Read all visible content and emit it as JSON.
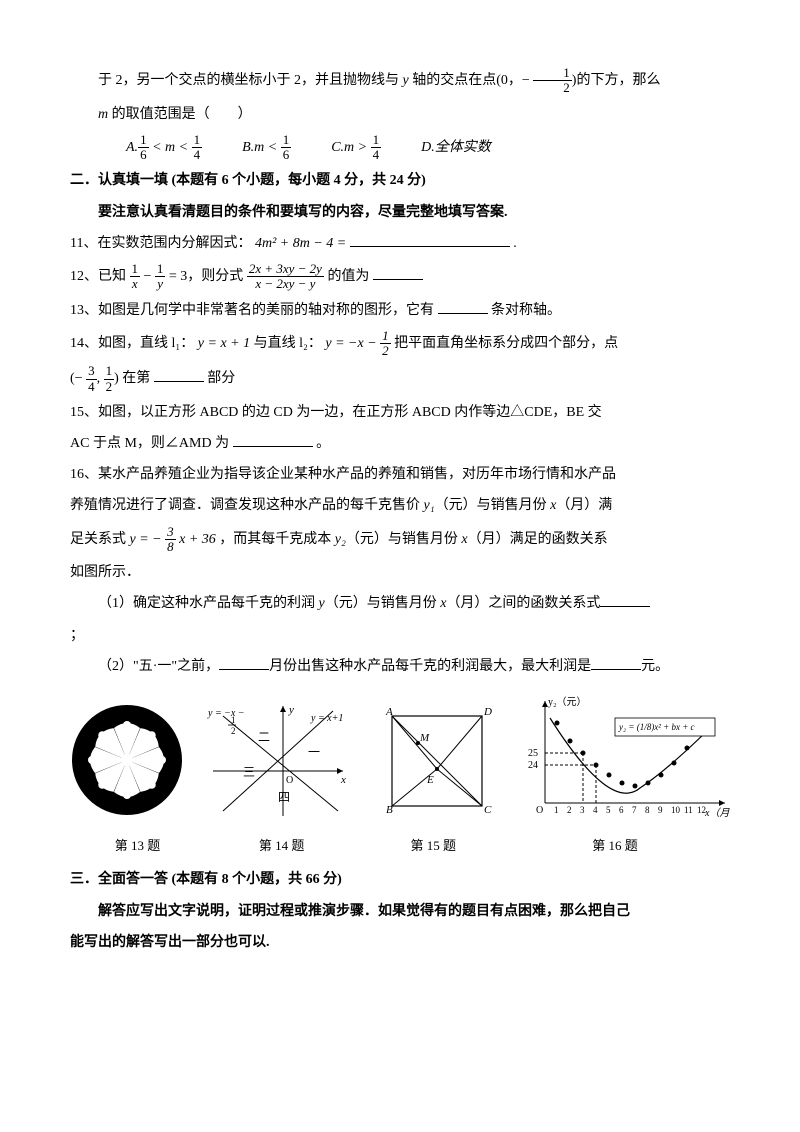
{
  "q10_continued": {
    "line1_a": "于 2，另一个交点的横坐标小于 2，并且抛物线与 ",
    "line1_b": " 轴的交点在点(0，− ",
    "line1_c": ")的下方，那么",
    "line2": " 的取值范围是（　　）",
    "y": "y",
    "m": "m",
    "optA_pre": "A.",
    "optA_frac1_n": "1",
    "optA_frac1_d": "6",
    "optA_mid": " < m < ",
    "optA_frac2_n": "1",
    "optA_frac2_d": "4",
    "optB_pre": "B.m < ",
    "optB_frac_n": "1",
    "optB_frac_d": "6",
    "optC_pre": "C.m > ",
    "optC_frac_n": "1",
    "optC_frac_d": "4",
    "optD": "D.全体实数",
    "half_n": "1",
    "half_d": "2"
  },
  "section2": {
    "title": "二．认真填一填  (本题有 6 个小题，每小题 4 分，共 24 分)",
    "sub": "要注意认真看清题目的条件和要填写的内容，尽量完整地填写答案."
  },
  "q11": {
    "pre": "11、在实数范围内分解因式：",
    "expr": "4m² + 8m − 4 =",
    "post": "."
  },
  "q12": {
    "pre": "12、已知 ",
    "mid1": " − ",
    "eq": " = 3，则分式 ",
    "post": " 的值为",
    "f1n": "1",
    "f1d": "x",
    "f2n": "1",
    "f2d": "y",
    "bigN": "2x + 3xy − 2y",
    "bigD": "x − 2xy − y"
  },
  "q13": {
    "text_a": "13、如图是几何学中非常著名的美丽的轴对称的图形，它有",
    "text_b": "条对称轴。"
  },
  "q14": {
    "pre": "14、如图，直线 l₁：",
    "eq1": "y = x + 1",
    "mid": " 与直线 l₂：",
    "eq2_a": "y = −x − ",
    "eq2_fn": "1",
    "eq2_fd": "2",
    "post": " 把平面直角坐标系分成四个部分，点",
    "coord_a": "(− ",
    "c1n": "3",
    "c1d": "4",
    "coord_b": ", ",
    "c2n": "1",
    "c2d": "2",
    "coord_c": ") 在第",
    "coord_d": "部分"
  },
  "q15": {
    "l1": "15、如图，以正方形 ABCD 的边 CD 为一边，在正方形 ABCD 内作等边△CDE，BE 交",
    "l2": "AC 于点 M，则∠AMD 为",
    "period": "。"
  },
  "q16": {
    "l1": "16、某水产品养殖企业为指导该企业某种水产品的养殖和销售，对历年市场行情和水产品",
    "l2_a": "养殖情况进行了调查．调查发现这种水产品的每千克售价 ",
    "y1": "y₁",
    "l2_b": "（元）与销售月份 ",
    "x": "x",
    "l2_c": "（月）满",
    "l3_a": "足关系式 ",
    "eq_a": "y = − ",
    "eq_fn": "3",
    "eq_fd": "8",
    "eq_b": " x + 36",
    "l3_b": "，而其每千克成本 ",
    "y2": "y₂",
    "l3_c": "（元）与销售月份 ",
    "l3_d": "（月）满足的函数关系",
    "l4": "如图所示．",
    "q1a": "（1）确定这种水产品每千克的利润 ",
    "y": "y",
    "q1b": "（元）与销售月份 ",
    "q1c": "（月）之间的函数关系式",
    "semi": "；",
    "q2a": "（2）\"五·一\"之前，",
    "q2b": "月份出售这种水产品每千克的利润最大，最大利润是",
    "q2c": "元。"
  },
  "figs": {
    "f13": "第 13 题",
    "f14": "第 14 题",
    "f15": "第 15 题",
    "f16": "第 16 题",
    "fig14": {
      "eq1": "y = −x − ",
      "eq1_fn": "1",
      "eq1_fd": "2",
      "eq2": "y = x+1",
      "ax_x": "x",
      "ax_y": "y",
      "r1": "一",
      "r2": "二",
      "r3": "三",
      "r4": "四",
      "O": "O"
    },
    "fig15": {
      "A": "A",
      "B": "B",
      "C": "C",
      "D": "D",
      "E": "E",
      "M": "M"
    },
    "fig16": {
      "ylab": "y₂（元）",
      "xlab": "x（月）",
      "eq": "y₂ = (1/8)x² + bx + c",
      "t25": "25",
      "t24": "24",
      "xticks": [
        "1",
        "2",
        "3",
        "4",
        "5",
        "6",
        "7",
        "8",
        "9",
        "10",
        "11",
        "12"
      ],
      "O": "O"
    }
  },
  "section3": {
    "title": "三．全面答一答  (本题有 8 个小题，共 66 分)",
    "sub1": "解答应写出文字说明，证明过程或推演步骤．如果觉得有的题目有点困难，那么把自己",
    "sub2": "能写出的解答写出一部分也可以."
  },
  "colors": {
    "text": "#000000",
    "bg": "#ffffff"
  }
}
